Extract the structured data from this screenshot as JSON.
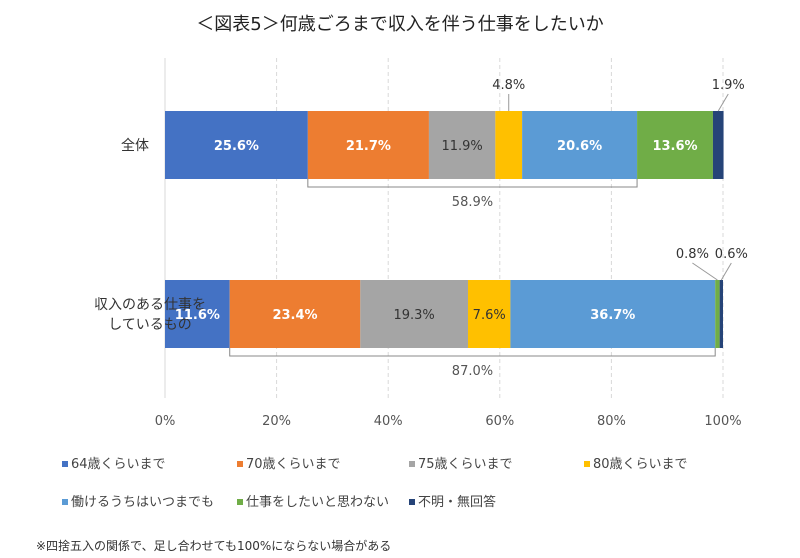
{
  "chart_data": {
    "type": "bar",
    "stacked": true,
    "orientation": "horizontal",
    "title": "＜図表5＞何歳ごろまで収入を伴う仕事をしたいか",
    "categories": [
      "全体",
      "収入のある仕事をしているもの"
    ],
    "category_lines": [
      [
        "全体"
      ],
      [
        "収入のある仕事を",
        "しているもの"
      ]
    ],
    "series": [
      {
        "name": "64歳くらいまで",
        "color": "#4472C4",
        "values": [
          25.6,
          11.6
        ],
        "label_color": "#ffffff"
      },
      {
        "name": "70歳くらいまで",
        "color": "#ED7D31",
        "values": [
          21.7,
          23.4
        ],
        "label_color": "#ffffff"
      },
      {
        "name": "75歳くらいまで",
        "color": "#A5A5A5",
        "values": [
          11.9,
          19.3
        ],
        "label_color": "#333333"
      },
      {
        "name": "80歳くらいまで",
        "color": "#FFC000",
        "values": [
          4.8,
          7.6
        ],
        "label_color": "#333333"
      },
      {
        "name": "働けるうちはいつまでも",
        "color": "#5B9BD5",
        "values": [
          20.6,
          36.7
        ],
        "label_color": "#ffffff"
      },
      {
        "name": "仕事をしたいと思わない",
        "color": "#70AD47",
        "values": [
          13.6,
          0.8
        ],
        "label_color": "#ffffff"
      },
      {
        "name": "不明・無回答",
        "color": "#264478",
        "values": [
          1.9,
          0.6
        ],
        "label_color": "#333333"
      }
    ],
    "data_labels": [
      [
        "25.6%",
        "21.7%",
        "11.9%",
        "4.8%",
        "20.6%",
        "13.6%",
        "1.9%"
      ],
      [
        "11.6%",
        "23.4%",
        "19.3%",
        "7.6%",
        "36.7%",
        "0.8%",
        "0.6%"
      ]
    ],
    "brackets": [
      {
        "category": "全体",
        "from_series": 1,
        "to_series": 4,
        "label": "58.9%"
      },
      {
        "category": "収入のある仕事をしているもの",
        "from_series": 1,
        "to_series": 4,
        "label": "87.0%"
      }
    ],
    "xlim": [
      0,
      100
    ],
    "xticks": [
      "0%",
      "20%",
      "40%",
      "60%",
      "80%",
      "100%"
    ],
    "grid": true,
    "legend_position": "bottom",
    "footnote": "※四捨五入の関係で、足し合わせても100%にならない場合がある"
  }
}
